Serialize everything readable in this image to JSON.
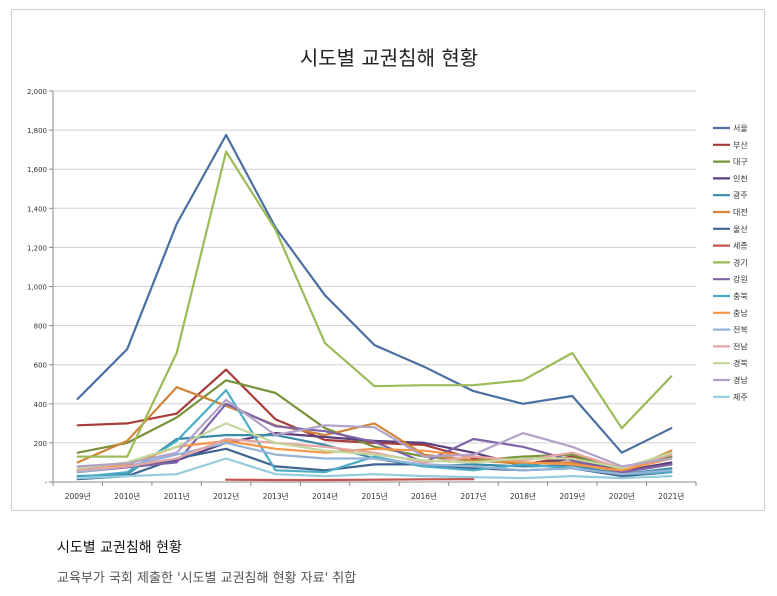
{
  "chart_data": {
    "type": "line",
    "title": "시도별 교권침해 현황",
    "categories": [
      "2009년",
      "2010년",
      "2011년",
      "2012년",
      "2013년",
      "2014년",
      "2015년",
      "2016년",
      "2017년",
      "2018년",
      "2019년",
      "2020년",
      "2021년"
    ],
    "ylim": [
      0,
      2000
    ],
    "yticks": [
      0,
      200,
      400,
      600,
      800,
      1000,
      1200,
      1400,
      1600,
      1800,
      2000
    ],
    "ytick_labels": [
      "-",
      "200",
      "400",
      "600",
      "800",
      "1,000",
      "1,200",
      "1,400",
      "1,600",
      "1,800",
      "2,000"
    ],
    "legend_position": "right",
    "series": [
      {
        "name": "서울",
        "color": "#4a6fa0",
        "values": [
          425,
          680,
          1320,
          1775,
          1300,
          955,
          700,
          590,
          465,
          400,
          440,
          150,
          275
        ]
      },
      {
        "name": "부산",
        "color": "#a83c3a",
        "values": [
          290,
          300,
          350,
          575,
          320,
          215,
          200,
          190,
          120,
          90,
          130,
          50,
          90
        ]
      },
      {
        "name": "대구",
        "color": "#78933c",
        "values": [
          150,
          200,
          330,
          520,
          455,
          275,
          180,
          130,
          110,
          130,
          140,
          55,
          130
        ]
      },
      {
        "name": "인천",
        "color": "#5c3f7e",
        "values": [
          60,
          85,
          110,
          200,
          250,
          230,
          210,
          200,
          150,
          85,
          120,
          55,
          100
        ]
      },
      {
        "name": "광주",
        "color": "#3a8aa8",
        "values": [
          30,
          40,
          220,
          240,
          240,
          190,
          120,
          80,
          90,
          80,
          85,
          40,
          70
        ]
      },
      {
        "name": "대전",
        "color": "#d18538",
        "values": [
          100,
          210,
          485,
          390,
          290,
          240,
          300,
          140,
          110,
          95,
          100,
          50,
          160
        ]
      },
      {
        "name": "울산",
        "color": "#416591",
        "values": [
          15,
          30,
          120,
          170,
          80,
          60,
          90,
          90,
          70,
          60,
          70,
          30,
          50
        ]
      },
      {
        "name": "세종",
        "color": "#c55552",
        "values": [
          null,
          null,
          null,
          12,
          10,
          10,
          12,
          14,
          15,
          null,
          null,
          null,
          null
        ]
      },
      {
        "name": "경기",
        "color": "#9bbb59",
        "values": [
          130,
          130,
          660,
          1690,
          1290,
          710,
          490,
          495,
          495,
          520,
          660,
          275,
          540
        ]
      },
      {
        "name": "강원",
        "color": "#7f65a8",
        "values": [
          50,
          75,
          100,
          400,
          285,
          260,
          205,
          100,
          220,
          180,
          110,
          50,
          90
        ]
      },
      {
        "name": "충북",
        "color": "#4bacc6",
        "values": [
          25,
          50,
          210,
          470,
          60,
          50,
          130,
          80,
          60,
          90,
          70,
          40,
          50
        ]
      },
      {
        "name": "충남",
        "color": "#f79646",
        "values": [
          55,
          90,
          180,
          210,
          170,
          150,
          170,
          160,
          130,
          100,
          90,
          60,
          120
        ]
      },
      {
        "name": "전북",
        "color": "#95b3d7",
        "values": [
          50,
          80,
          140,
          200,
          140,
          120,
          120,
          90,
          80,
          60,
          70,
          40,
          60
        ]
      },
      {
        "name": "전남",
        "color": "#e6a5a3",
        "values": [
          60,
          80,
          120,
          220,
          200,
          180,
          150,
          100,
          130,
          110,
          150,
          70,
          140
        ]
      },
      {
        "name": "경북",
        "color": "#c3d69b",
        "values": [
          70,
          100,
          180,
          300,
          200,
          160,
          140,
          110,
          100,
          120,
          120,
          70,
          150
        ]
      },
      {
        "name": "경남",
        "color": "#b3a2c7",
        "values": [
          80,
          95,
          150,
          420,
          240,
          290,
          280,
          130,
          140,
          250,
          180,
          80,
          120
        ]
      },
      {
        "name": "제주",
        "color": "#93cddd",
        "values": [
          20,
          30,
          40,
          120,
          40,
          30,
          40,
          30,
          25,
          20,
          30,
          20,
          30
        ]
      }
    ]
  },
  "caption": {
    "title": "시도별 교권침해 현황",
    "text": "교육부가 국회 제출한 '시도별 교권침해 현황 자료' 취합"
  }
}
